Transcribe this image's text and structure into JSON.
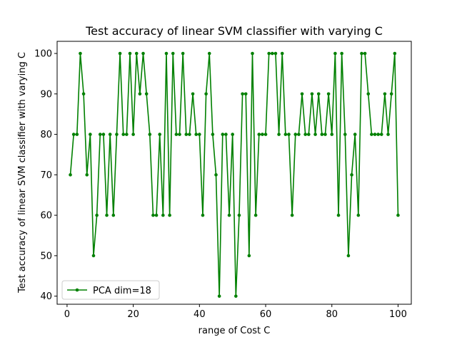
{
  "chart_data": {
    "type": "line",
    "title": "Test accuracy of linear SVM classifier with varying C",
    "xlabel": "range of Cost C",
    "ylabel": "Test accuracy of linear SVM classifier with varying C",
    "xlim": [
      -3,
      104
    ],
    "ylim": [
      38,
      103
    ],
    "xticks": [
      0,
      20,
      40,
      60,
      80,
      100
    ],
    "yticks": [
      40,
      50,
      60,
      70,
      80,
      90,
      100
    ],
    "grid": false,
    "legend_position": "lower-left",
    "series": [
      {
        "name": "PCA dim=18",
        "color": "#008000",
        "x": [
          1,
          2,
          3,
          4,
          5,
          6,
          7,
          8,
          9,
          10,
          11,
          12,
          13,
          14,
          15,
          16,
          17,
          18,
          19,
          20,
          21,
          22,
          23,
          24,
          25,
          26,
          27,
          28,
          29,
          30,
          31,
          32,
          33,
          34,
          35,
          36,
          37,
          38,
          39,
          40,
          41,
          42,
          43,
          44,
          45,
          46,
          47,
          48,
          49,
          50,
          51,
          52,
          53,
          54,
          55,
          56,
          57,
          58,
          59,
          60,
          61,
          62,
          63,
          64,
          65,
          66,
          67,
          68,
          69,
          70,
          71,
          72,
          73,
          74,
          75,
          76,
          77,
          78,
          79,
          80,
          81,
          82,
          83,
          84,
          85,
          86,
          87,
          88,
          89,
          90,
          91,
          92,
          93,
          94,
          95,
          96,
          97,
          98,
          99,
          100
        ],
        "values": [
          70,
          80,
          80,
          100,
          90,
          70,
          80,
          50,
          60,
          80,
          80,
          60,
          80,
          60,
          80,
          100,
          80,
          80,
          100,
          80,
          100,
          90,
          100,
          90,
          80,
          60,
          60,
          80,
          60,
          100,
          60,
          100,
          80,
          80,
          100,
          80,
          80,
          90,
          80,
          80,
          60,
          90,
          100,
          80,
          70,
          40,
          80,
          80,
          60,
          80,
          40,
          60,
          90,
          90,
          50,
          100,
          60,
          80,
          80,
          80,
          100,
          100,
          100,
          80,
          100,
          80,
          80,
          60,
          80,
          80,
          90,
          80,
          80,
          90,
          80,
          90,
          80,
          80,
          90,
          80,
          100,
          60,
          100,
          80,
          50,
          70,
          80,
          60,
          100,
          100,
          90,
          80,
          80,
          80,
          80,
          90,
          80,
          90,
          100,
          60
        ]
      }
    ]
  }
}
